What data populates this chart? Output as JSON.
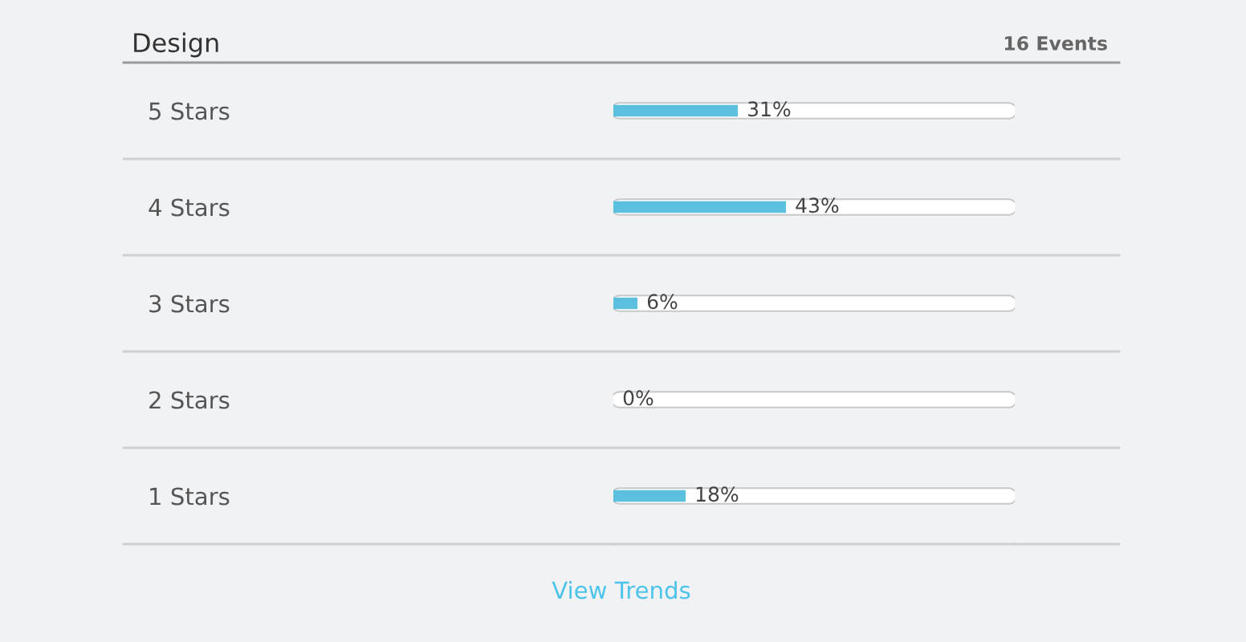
{
  "chart_data": {
    "type": "bar",
    "orientation": "horizontal",
    "title": "Design",
    "categories": [
      "5 Stars",
      "4 Stars",
      "3 Stars",
      "2 Stars",
      "1 Stars"
    ],
    "values": [
      31,
      43,
      6,
      0,
      18
    ],
    "value_labels": [
      "31%",
      "43%",
      "6%",
      "0%",
      "18%"
    ],
    "color": "#5bbfde",
    "xlim": [
      0,
      100
    ],
    "tick_labels": "y",
    "grid": "y",
    "annotations": [
      "16 Events",
      "View Trends"
    ]
  }
}
